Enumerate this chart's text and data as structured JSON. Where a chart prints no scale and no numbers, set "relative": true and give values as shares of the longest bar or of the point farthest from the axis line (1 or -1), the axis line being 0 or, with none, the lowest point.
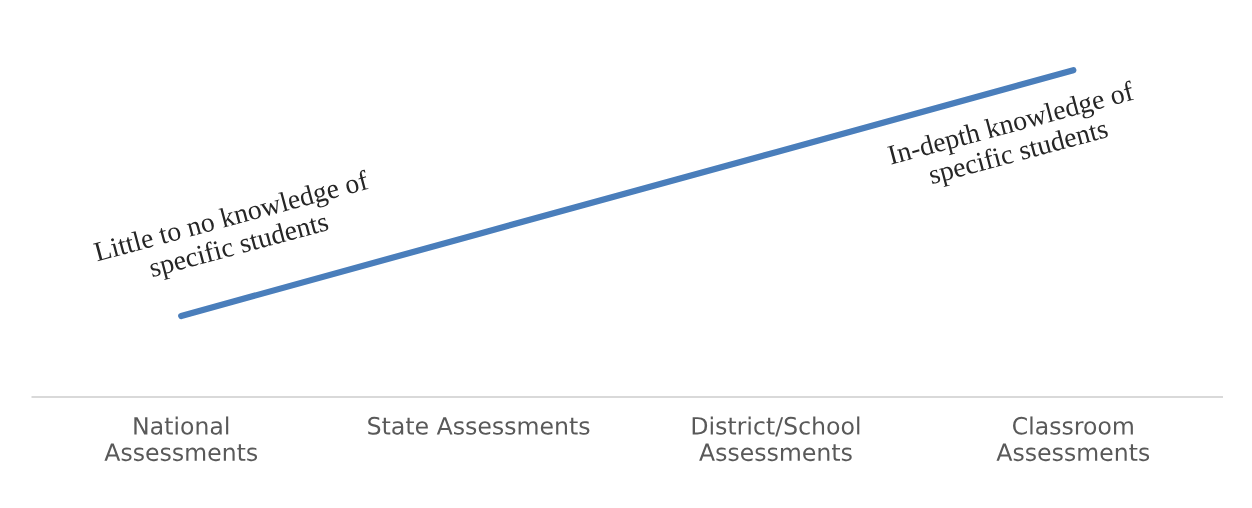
{
  "chart_data": {
    "type": "line",
    "relative": true,
    "categories": [
      "National\nAssessments",
      "State Assessments",
      "District/School\nAssessments",
      "Classroom\nAssessments"
    ],
    "series": [
      {
        "color": "#4a7ebb",
        "values": [
          0.248,
          0.499,
          0.749,
          1
        ]
      }
    ],
    "annotations": [
      {
        "text": "Little to no knowledge of\nspecific students",
        "x": "National\nAssessments",
        "y": 0.248
      },
      {
        "text": "In-depth knowledge of\nspecific students",
        "x": "Classroom\nAssessments",
        "y": 1
      }
    ],
    "line_style": "solid"
  }
}
